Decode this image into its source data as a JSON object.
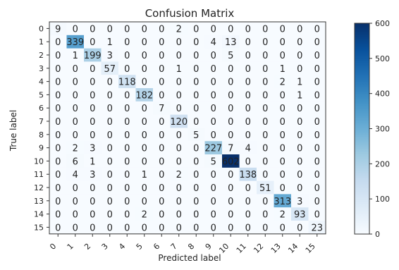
{
  "chart_data": {
    "type": "heatmap",
    "title": "Confusion Matrix",
    "xlabel": "Predicted label",
    "ylabel": "True label",
    "x_categories": [
      "0",
      "1",
      "2",
      "3",
      "4",
      "5",
      "6",
      "7",
      "8",
      "9",
      "10",
      "11",
      "12",
      "13",
      "14",
      "15"
    ],
    "y_categories": [
      "0",
      "1",
      "2",
      "3",
      "4",
      "5",
      "6",
      "7",
      "8",
      "9",
      "10",
      "11",
      "12",
      "13",
      "14",
      "15"
    ],
    "matrix": [
      [
        9,
        0,
        0,
        0,
        0,
        0,
        0,
        2,
        0,
        0,
        0,
        0,
        0,
        0,
        0,
        0
      ],
      [
        0,
        339,
        0,
        1,
        0,
        0,
        0,
        0,
        0,
        4,
        13,
        0,
        0,
        0,
        0,
        0
      ],
      [
        0,
        1,
        199,
        3,
        0,
        0,
        0,
        0,
        0,
        0,
        5,
        0,
        0,
        0,
        0,
        0
      ],
      [
        0,
        0,
        0,
        57,
        0,
        0,
        0,
        1,
        0,
        0,
        0,
        0,
        0,
        1,
        0,
        0
      ],
      [
        0,
        0,
        0,
        0,
        118,
        0,
        0,
        0,
        0,
        0,
        0,
        0,
        0,
        2,
        1,
        0
      ],
      [
        0,
        0,
        0,
        0,
        0,
        182,
        0,
        0,
        0,
        0,
        0,
        0,
        0,
        0,
        1,
        0
      ],
      [
        0,
        0,
        0,
        0,
        0,
        0,
        7,
        0,
        0,
        0,
        0,
        0,
        0,
        0,
        0,
        0
      ],
      [
        0,
        0,
        0,
        0,
        0,
        0,
        0,
        120,
        0,
        0,
        0,
        0,
        0,
        0,
        0,
        0
      ],
      [
        0,
        0,
        0,
        0,
        0,
        0,
        0,
        0,
        5,
        0,
        0,
        0,
        0,
        0,
        0,
        0
      ],
      [
        0,
        2,
        3,
        0,
        0,
        0,
        0,
        0,
        0,
        227,
        7,
        4,
        0,
        0,
        0,
        0
      ],
      [
        0,
        6,
        1,
        0,
        0,
        0,
        0,
        0,
        0,
        5,
        602,
        0,
        0,
        0,
        0,
        0
      ],
      [
        0,
        4,
        3,
        0,
        0,
        1,
        0,
        2,
        0,
        0,
        0,
        138,
        0,
        0,
        0,
        0
      ],
      [
        0,
        0,
        0,
        0,
        0,
        0,
        0,
        0,
        0,
        0,
        0,
        0,
        51,
        0,
        0,
        0
      ],
      [
        0,
        0,
        0,
        0,
        0,
        0,
        0,
        0,
        0,
        0,
        0,
        0,
        0,
        313,
        3,
        0
      ],
      [
        0,
        0,
        0,
        0,
        0,
        2,
        0,
        0,
        0,
        0,
        0,
        0,
        0,
        2,
        93,
        0
      ],
      [
        0,
        0,
        0,
        0,
        0,
        0,
        0,
        0,
        0,
        0,
        0,
        0,
        0,
        0,
        0,
        23
      ]
    ],
    "colorbar": {
      "min": 0,
      "max": 600,
      "ticks": [
        "0",
        "100",
        "200",
        "300",
        "400",
        "500",
        "600"
      ],
      "colormap": "Blues",
      "low_color": "#f7fbff",
      "high_color": "#08306b"
    },
    "grid": false
  }
}
